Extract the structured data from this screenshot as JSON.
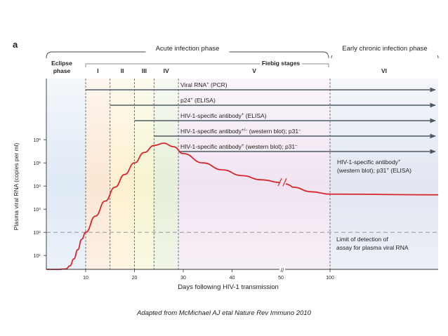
{
  "chart_data": {
    "type": "line",
    "panel_label": "a",
    "title": "",
    "xlabel": "Days following HIV-1 transmission",
    "ylabel": "Plasma viral RNA (copies per ml)",
    "x_ticks": [
      {
        "value": 10,
        "label": "10"
      },
      {
        "value": 20,
        "label": "20"
      },
      {
        "value": 30,
        "label": "30"
      },
      {
        "value": 40,
        "label": "40"
      },
      {
        "value": 50,
        "label": "50"
      },
      {
        "value": 100,
        "label": "100"
      }
    ],
    "y_ticks": [
      {
        "label": "10",
        "exp": "1",
        "value": 1
      },
      {
        "label": "10",
        "exp": "2",
        "value": 2
      },
      {
        "label": "10",
        "exp": "3",
        "value": 3
      },
      {
        "label": "10",
        "exp": "4",
        "value": 4
      },
      {
        "label": "10",
        "exp": "5",
        "value": 5
      },
      {
        "label": "10",
        "exp": "6",
        "value": 6
      }
    ],
    "axis_break_label": "//",
    "series": [
      {
        "name": "Plasma viral RNA",
        "color": "#d7262b",
        "x": [
          0,
          3,
          5,
          6,
          7,
          8,
          9,
          10,
          12,
          14,
          16,
          18,
          20,
          22,
          24,
          26,
          28,
          30,
          34,
          38,
          42,
          46,
          50,
          54,
          56,
          60,
          80,
          100,
          110
        ],
        "log10_y": [
          0.4,
          0.4,
          0.42,
          0.55,
          0.85,
          1.25,
          1.7,
          2.0,
          2.7,
          3.35,
          3.95,
          4.5,
          5.0,
          5.45,
          5.75,
          5.85,
          5.7,
          5.4,
          5.0,
          4.7,
          4.45,
          4.27,
          4.15,
          4.08,
          4.04,
          3.95,
          3.75,
          3.65,
          3.62
        ]
      }
    ],
    "detection_limit": {
      "log10_y": 2.0,
      "label_lines": [
        "Limit of detection of",
        "assay for plasma viral RNA"
      ]
    },
    "phases": [
      {
        "name": "Acute infection phase",
        "from": 0,
        "to": 100
      },
      {
        "name": "Early chronic infection phase",
        "from": 100,
        "to": 110
      }
    ],
    "fiebig_title": "Fiebig stages",
    "stages": [
      {
        "name": "Eclipse phase",
        "lines": [
          "Eclipse",
          "phase"
        ],
        "from": 0,
        "to": 10,
        "color": "#dfe9f5"
      },
      {
        "name": "I",
        "lines": [
          "I"
        ],
        "from": 10,
        "to": 15,
        "color": "#fbe6d3"
      },
      {
        "name": "II",
        "lines": [
          "II"
        ],
        "from": 15,
        "to": 20,
        "color": "#fdf0cf"
      },
      {
        "name": "III",
        "lines": [
          "III"
        ],
        "from": 20,
        "to": 24,
        "color": "#f6f4d0"
      },
      {
        "name": "IV",
        "lines": [
          "IV"
        ],
        "from": 24,
        "to": 29,
        "color": "#e6efd9"
      },
      {
        "name": "V",
        "lines": [
          "V"
        ],
        "from": 29,
        "to": 100,
        "color": "#f1e4f1"
      },
      {
        "name": "VI",
        "lines": [
          "VI"
        ],
        "from": 100,
        "to": 110,
        "color": "#e1e6f1"
      }
    ],
    "assays": [
      {
        "label": "Viral RNA",
        "sup": "+",
        "rest": " (PCR)",
        "start_x": 10
      },
      {
        "label": "p24",
        "sup": "+",
        "rest": " (ELISA)",
        "start_x": 15
      },
      {
        "label": "HIV-1-specific antibody",
        "sup": "+",
        "rest": " (ELISA)",
        "start_x": 20
      },
      {
        "label": "HIV-1-specific antibody",
        "sup": "+/–",
        "rest": " (western blot); p31",
        "sup2": "–",
        "start_x": 24
      },
      {
        "label": "HIV-1-specific antibody",
        "sup": "+",
        "rest": " (western blot); p31",
        "sup2": "–",
        "start_x": 29
      }
    ],
    "stage6_note": {
      "line1": "HIV-1-specific antibody",
      "line1_sup": "+",
      "line2": "(western blot); p31",
      "line2_sup": "+",
      "line2_rest": " (ELISA)"
    }
  },
  "caption": "Adapted from McMichael AJ etal Nature Rev Immuno 2010"
}
